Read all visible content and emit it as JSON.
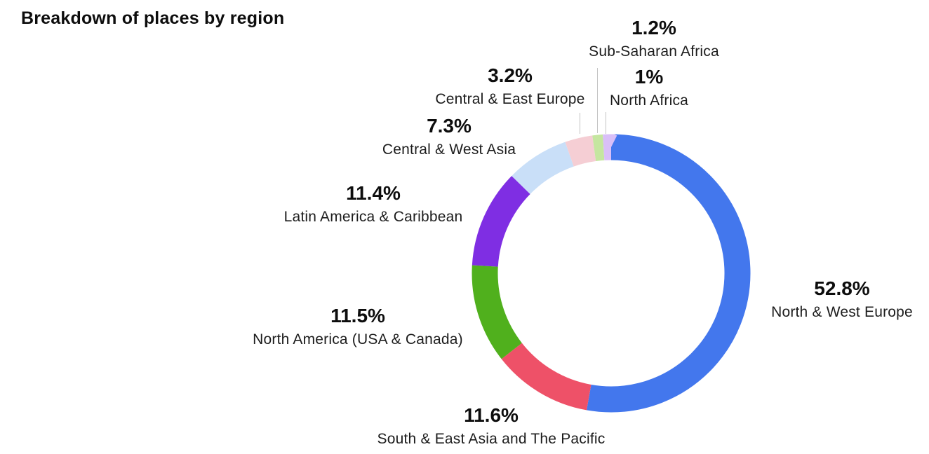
{
  "title": "Breakdown of places by region",
  "chart_data": {
    "type": "pie",
    "variant": "donut",
    "title": "Breakdown of places by region",
    "legend_position": "none",
    "labels_position": "outside",
    "start_angle_deg": 0,
    "direction": "clockwise",
    "total": 100.0,
    "segments": [
      {
        "label": "North & West Europe",
        "value": 52.8,
        "pct_label": "52.8%",
        "color": "#4377ED"
      },
      {
        "label": "South & East Asia and The Pacific",
        "value": 11.6,
        "pct_label": "11.6%",
        "color": "#EE5168"
      },
      {
        "label": "North America (USA & Canada)",
        "value": 11.5,
        "pct_label": "11.5%",
        "color": "#50B01D"
      },
      {
        "label": "Latin America & Caribbean",
        "value": 11.4,
        "pct_label": "11.4%",
        "color": "#7F2EE3"
      },
      {
        "label": "Central & West Asia",
        "value": 7.3,
        "pct_label": "7.3%",
        "color": "#C9DFF8"
      },
      {
        "label": "Central & East Europe",
        "value": 3.2,
        "pct_label": "3.2%",
        "color": "#F5CED4"
      },
      {
        "label": "Sub-Saharan Africa",
        "value": 1.2,
        "pct_label": "1.2%",
        "color": "#C5E6A0"
      },
      {
        "label": "North Africa",
        "value": 1.0,
        "pct_label": "1%",
        "color": "#D9BFF8"
      }
    ]
  },
  "colors": {
    "background": "#FFFFFF",
    "text": "#161616",
    "leader_line": "#C3C3C3"
  }
}
